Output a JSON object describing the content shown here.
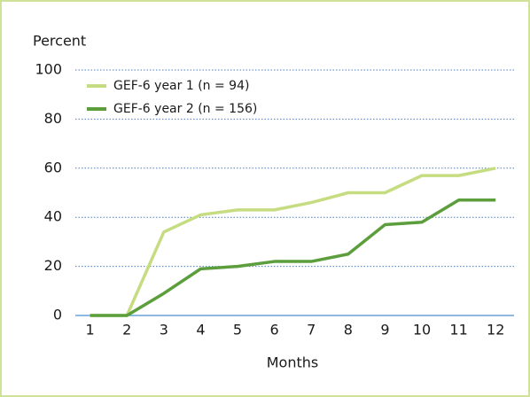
{
  "chart_data": {
    "type": "line",
    "y_label": "Percent",
    "x_label": "Months",
    "x": [
      1,
      2,
      3,
      4,
      5,
      6,
      7,
      8,
      9,
      10,
      11,
      12
    ],
    "xlim": [
      0.6,
      12.5
    ],
    "xticks": [
      1,
      2,
      3,
      4,
      5,
      6,
      7,
      8,
      9,
      10,
      11,
      12
    ],
    "ylim": [
      0,
      100
    ],
    "yticks": [
      0,
      20,
      40,
      60,
      80,
      100
    ],
    "grid": true,
    "legend": "top-left",
    "series": [
      {
        "name": "GEF-6 year 1 (n = 94)",
        "color": "#c5dc80",
        "values": [
          0,
          0,
          34,
          41,
          43,
          43,
          46,
          50,
          50,
          57,
          57,
          60
        ]
      },
      {
        "name": "GEF-6 year 2 (n = 156)",
        "color": "#5c9e3c",
        "values": [
          0,
          0,
          9,
          19,
          20,
          22,
          22,
          25,
          37,
          38,
          47,
          47
        ]
      }
    ]
  }
}
